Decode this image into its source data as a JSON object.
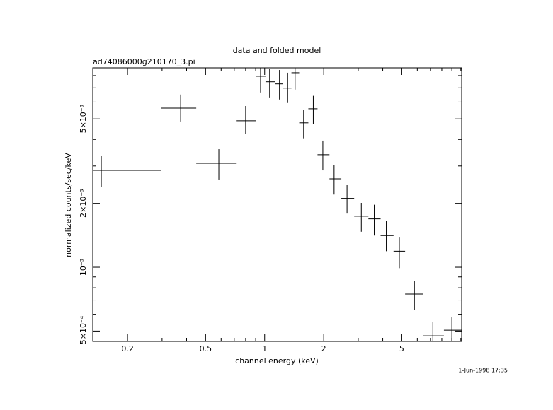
{
  "chart_data": {
    "type": "scatter",
    "title": "data and folded model",
    "subtitle": "ad74086000g210170_3.pi",
    "x_label": "channel energy (keV)",
    "y_label": "normalized counts/sec/keV",
    "timestamp": "1-Jun-1998 17:35",
    "log_x": true,
    "log_y": true,
    "color": "#000000",
    "xlim": [
      0.133,
      10.1
    ],
    "ylim": [
      0.000447,
      0.0087
    ],
    "xticks": [
      0.2,
      0.5,
      1,
      2,
      5
    ],
    "xminorticks": [
      0.3,
      0.4,
      0.6,
      0.7,
      0.8,
      0.9,
      3,
      4,
      6,
      7,
      8,
      9,
      10
    ],
    "yticks": [
      {
        "value": 0.0005,
        "label": "5×10⁻⁴"
      },
      {
        "value": 0.001,
        "label": "10⁻³"
      },
      {
        "value": 0.002,
        "label": "2×10⁻³"
      },
      {
        "value": 0.005,
        "label": "5×10⁻³"
      }
    ],
    "yminorticks": [
      0.0006,
      0.0007,
      0.0008,
      0.0009,
      0.003,
      0.004,
      0.006,
      0.007,
      0.008
    ],
    "x": [
      0.147,
      0.373,
      0.584,
      0.8,
      0.953,
      1.06,
      1.19,
      1.31,
      1.43,
      1.58,
      1.77,
      1.98,
      2.26,
      2.63,
      3.11,
      3.62,
      4.17,
      4.86,
      5.8,
      7.2,
      9.0
    ],
    "x_low": [
      0.12,
      0.296,
      0.448,
      0.72,
      0.9,
      1.01,
      1.13,
      1.24,
      1.37,
      1.5,
      1.67,
      1.86,
      2.14,
      2.46,
      2.86,
      3.38,
      3.9,
      4.54,
      5.2,
      6.43,
      8.2
    ],
    "x_high": [
      0.296,
      0.448,
      0.72,
      0.9,
      1.01,
      1.13,
      1.24,
      1.37,
      1.5,
      1.67,
      1.86,
      2.14,
      2.46,
      2.86,
      3.38,
      3.9,
      4.54,
      5.2,
      6.43,
      8.2,
      10.1
    ],
    "y": [
      0.00286,
      0.00562,
      0.00309,
      0.0049,
      0.00794,
      0.00748,
      0.00731,
      0.00698,
      0.00825,
      0.00479,
      0.00558,
      0.00339,
      0.00261,
      0.00211,
      0.00174,
      0.00169,
      0.00141,
      0.00119,
      0.000747,
      0.000475,
      0.000505
    ],
    "y_low": [
      0.00238,
      0.00486,
      0.00259,
      0.00424,
      0.00666,
      0.00631,
      0.00617,
      0.00594,
      0.00687,
      0.00405,
      0.00474,
      0.00286,
      0.0022,
      0.00179,
      0.00147,
      0.00141,
      0.00119,
      0.00099,
      0.000627,
      0.00044,
      0.00044
    ],
    "y_high": [
      0.00336,
      0.00651,
      0.0036,
      0.00575,
      0.009,
      0.0086,
      0.0085,
      0.00825,
      0.0089,
      0.00553,
      0.00642,
      0.00395,
      0.00302,
      0.00244,
      0.00201,
      0.00197,
      0.00165,
      0.00139,
      0.000858,
      0.00055,
      0.00058
    ]
  }
}
